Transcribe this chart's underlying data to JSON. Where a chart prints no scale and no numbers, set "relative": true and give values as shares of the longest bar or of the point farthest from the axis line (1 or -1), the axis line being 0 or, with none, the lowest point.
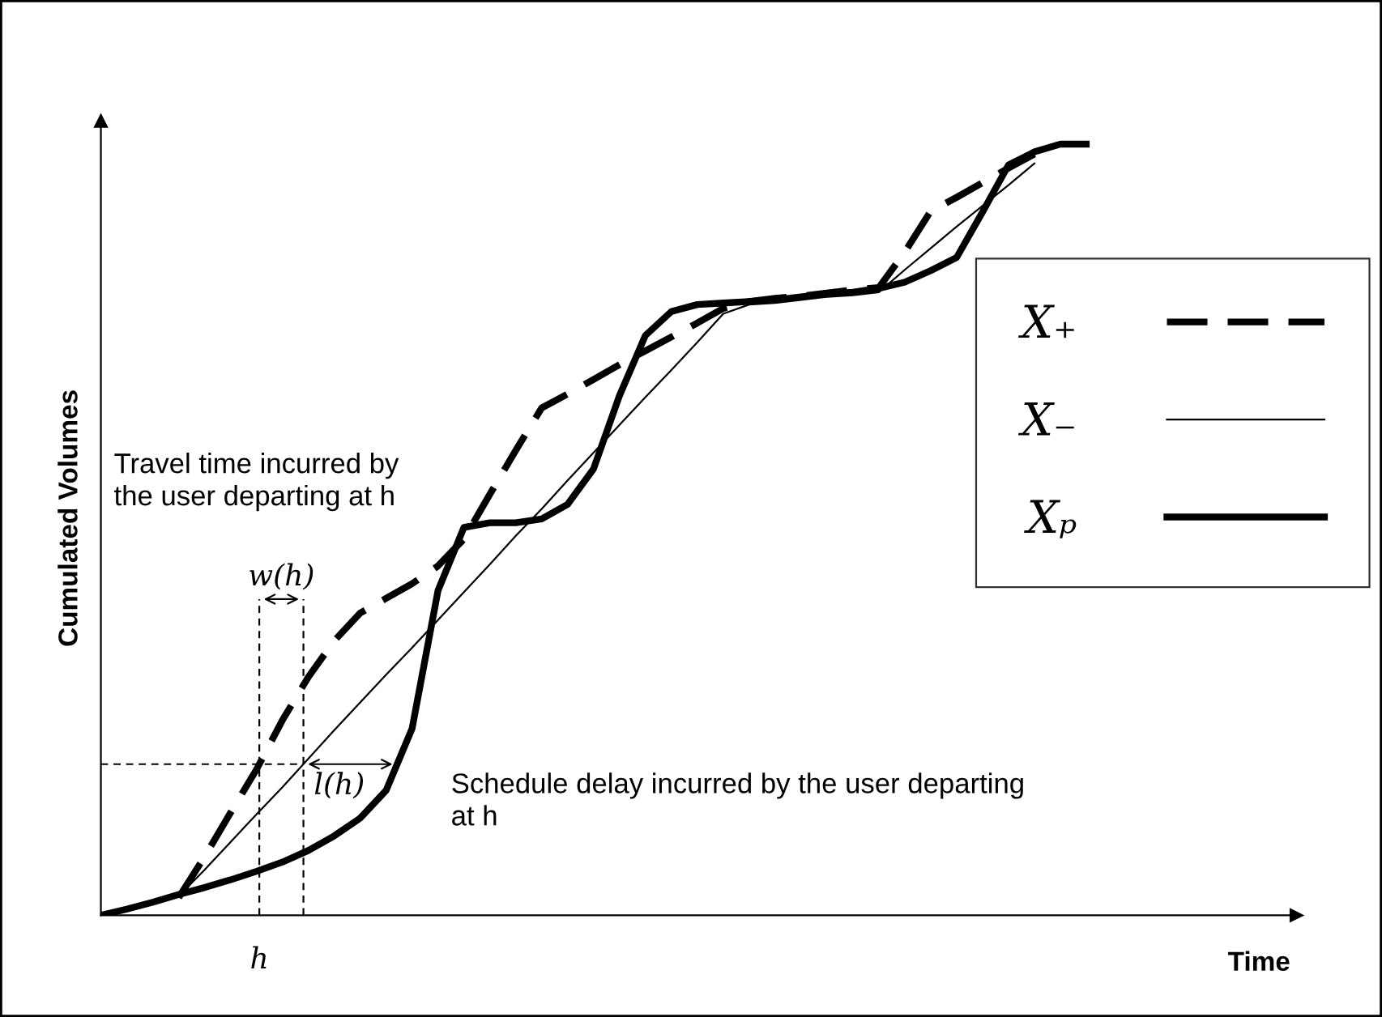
{
  "chart_data": {
    "type": "line",
    "relative": true,
    "ylabel": "Cumulated Volumes",
    "categories": [
      null,
      null,
      null,
      null,
      null,
      null,
      null,
      null,
      null,
      null,
      null,
      null,
      null,
      null,
      null,
      null,
      null,
      null,
      null,
      null,
      null,
      null,
      null,
      null,
      null,
      null,
      null,
      null,
      null,
      null,
      null,
      null,
      null,
      null,
      null,
      null,
      null,
      null,
      null
    ],
    "series": [
      {
        "name": "X₊",
        "color": "#000000",
        "line_style": "dashed",
        "values": [
          null,
          null,
          null,
          0.023,
          0.076,
          0.133,
          0.189,
          0.253,
          0.309,
          0.356,
          0.392,
          0.411,
          0.43,
          0.453,
          0.488,
          0.546,
          0.603,
          0.658,
          0.676,
          0.695,
          0.714,
          0.732,
          0.75,
          0.768,
          0.787,
          0.796,
          0.8,
          0.803,
          0.807,
          0.811,
          0.814,
          0.86,
          0.913,
          0.931,
          0.95,
          0.969,
          0.987,
          null,
          null
        ]
      },
      {
        "name": "X₋",
        "color": "#000000",
        "line_style": "solid",
        "values": [
          null,
          null,
          null,
          0.025,
          0.059,
          0.095,
          0.131,
          0.166,
          0.203,
          0.24,
          0.276,
          0.312,
          0.347,
          0.383,
          0.419,
          0.455,
          0.492,
          0.527,
          0.564,
          0.6,
          0.636,
          0.672,
          0.707,
          0.743,
          0.78,
          0.792,
          0.794,
          0.798,
          0.802,
          0.804,
          0.808,
          0.837,
          0.865,
          0.893,
          0.92,
          0.947,
          0.975,
          null,
          null
        ]
      },
      {
        "name": "Xₚ",
        "color": "#000000",
        "line_style": "solid",
        "values": [
          0,
          0.008,
          0.017,
          0.027,
          0.036,
          0.046,
          0.057,
          0.069,
          0.084,
          0.103,
          0.126,
          0.162,
          0.242,
          0.421,
          0.503,
          0.509,
          0.509,
          0.514,
          0.533,
          0.579,
          0.674,
          0.752,
          0.783,
          0.792,
          0.794,
          0.796,
          0.798,
          0.802,
          0.806,
          0.808,
          0.813,
          0.821,
          0.836,
          0.853,
          0.912,
          0.973,
          0.99,
          1,
          1
        ]
      }
    ],
    "ref_lines": [
      {
        "axis": "y",
        "value": 0.196,
        "line_style": "dashed"
      }
    ],
    "annotations": [
      "Travel time incurred by\nthe user departing at h",
      "Schedule delay incurred by the user departing\nat h",
      "w(h)",
      "l(h)",
      "h",
      "Time"
    ],
    "legend": "right",
    "grid": false
  }
}
